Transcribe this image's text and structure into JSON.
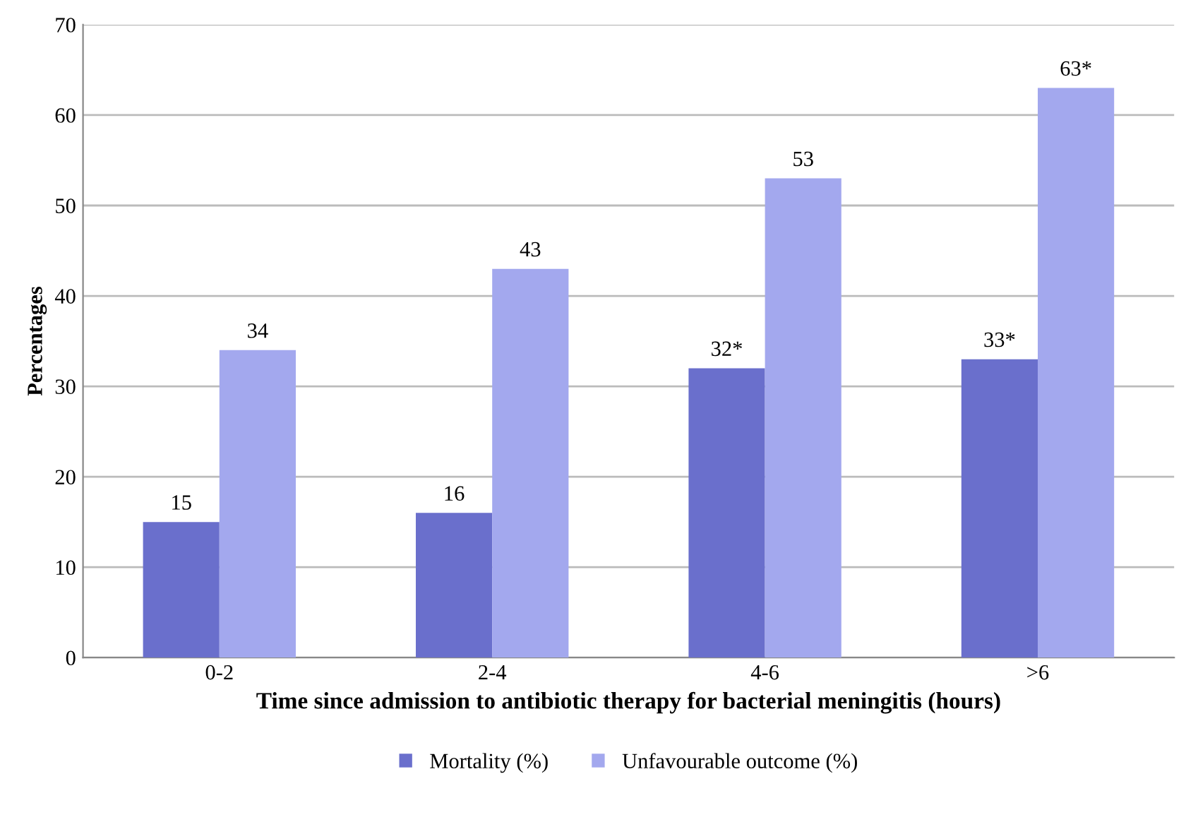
{
  "chart_data": {
    "type": "bar",
    "xlabel": "Time since admission to antibiotic therapy for bacterial meningitis (hours)",
    "ylabel": "Percentages",
    "categories": [
      "0-2",
      "2-4",
      "4-6",
      ">6"
    ],
    "series": [
      {
        "name": "Mortality (%)",
        "color": "#6a6fcc",
        "values": [
          15,
          16,
          32,
          33
        ],
        "value_labels": [
          "15",
          "16",
          "32*",
          "33*"
        ]
      },
      {
        "name": "Unfavourable outcome (%)",
        "color": "#a3a8ee",
        "values": [
          34,
          43,
          53,
          63
        ],
        "value_labels": [
          "34",
          "43",
          "53",
          "63*"
        ]
      }
    ],
    "ylim": [
      0,
      70
    ],
    "yticks": [
      0,
      10,
      20,
      30,
      40,
      50,
      60,
      70
    ],
    "grid": "y",
    "legend": "bottom"
  }
}
